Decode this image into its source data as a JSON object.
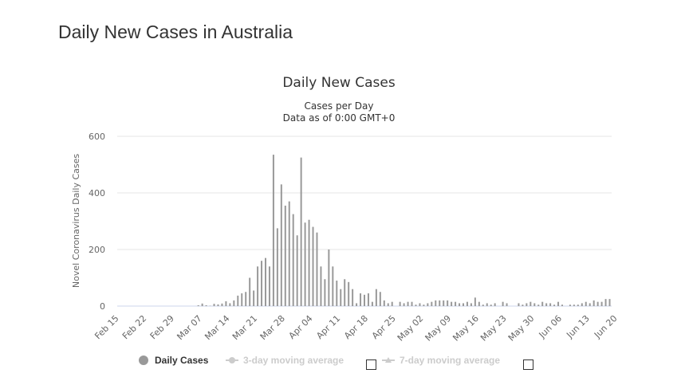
{
  "page_title": "Daily New Cases in Australia",
  "colors": {
    "bar": "#999999",
    "grid": "#e6e6e6",
    "text": "#333333",
    "axis_text": "#666666",
    "hidden_series": "#cccccc"
  },
  "legend": {
    "daily_cases": "Daily Cases",
    "ma3": "3-day moving average",
    "ma7": "7-day moving average"
  },
  "chart_data": {
    "type": "bar",
    "title": "Daily New Cases",
    "subtitle_line1": "Cases per Day",
    "subtitle_line2": "Data as of 0:00 GMT+0",
    "ylabel": "Novel Coronavirus Daily Cases",
    "xlabel": "",
    "ylim": [
      0,
      600
    ],
    "yticks": [
      0,
      200,
      400,
      600
    ],
    "x_tick_labels": [
      "Feb 15",
      "Feb 22",
      "Feb 29",
      "Mar 07",
      "Mar 14",
      "Mar 21",
      "Mar 28",
      "Apr 04",
      "Apr 11",
      "Apr 18",
      "Apr 25",
      "May 02",
      "May 09",
      "May 16",
      "May 23",
      "May 30",
      "Jun 06",
      "Jun 13",
      "Jun 20"
    ],
    "start_label": "Feb 15",
    "grid": true,
    "legend_position": "bottom",
    "series": [
      {
        "name": "Daily Cases",
        "values": [
          0,
          0,
          0,
          0,
          0,
          0,
          0,
          0,
          0,
          0,
          0,
          0,
          0,
          0,
          0,
          0,
          0,
          0,
          0,
          0,
          3,
          9,
          3,
          1,
          8,
          6,
          9,
          17,
          10,
          20,
          37,
          45,
          50,
          100,
          55,
          140,
          160,
          170,
          140,
          535,
          275,
          430,
          355,
          370,
          325,
          250,
          525,
          295,
          305,
          280,
          260,
          140,
          95,
          200,
          140,
          90,
          60,
          95,
          85,
          60,
          10,
          45,
          40,
          45,
          15,
          60,
          50,
          20,
          10,
          15,
          0,
          15,
          10,
          15,
          15,
          5,
          10,
          5,
          10,
          15,
          20,
          20,
          20,
          20,
          15,
          15,
          10,
          10,
          15,
          10,
          30,
          15,
          5,
          10,
          5,
          10,
          0,
          15,
          10,
          0,
          0,
          10,
          5,
          10,
          15,
          10,
          5,
          15,
          10,
          10,
          5,
          15,
          5,
          0,
          5,
          5,
          5,
          10,
          15,
          10,
          20,
          15,
          15,
          25,
          25
        ]
      },
      {
        "name": "3-day moving average",
        "visible": false
      },
      {
        "name": "7-day moving average",
        "visible": false
      }
    ]
  }
}
